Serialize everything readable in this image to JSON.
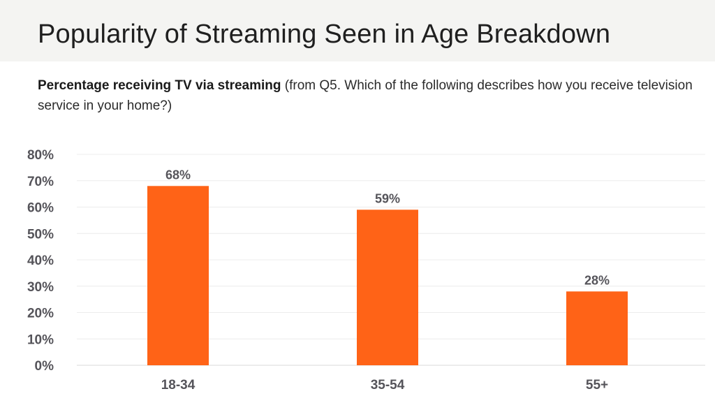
{
  "header": {
    "title": "Popularity of Streaming Seen in Age Breakdown"
  },
  "subtitle": {
    "bold": "Percentage receiving TV via streaming",
    "rest": " (from Q5. Which of the following describes how you receive television service in your home?)"
  },
  "chart_data": {
    "type": "bar",
    "title": "Percentage receiving TV via streaming",
    "categories": [
      "18-34",
      "35-54",
      "55+"
    ],
    "values": [
      68,
      59,
      28
    ],
    "data_labels": [
      "68%",
      "59%",
      "28%"
    ],
    "ylim": [
      0,
      80
    ],
    "yticks": [
      0,
      10,
      20,
      30,
      40,
      50,
      60,
      70,
      80
    ],
    "ytick_labels": [
      "0%",
      "10%",
      "20%",
      "30%",
      "40%",
      "50%",
      "60%",
      "70%",
      "80%"
    ],
    "xlabel": "",
    "ylabel": "",
    "grid": true,
    "legend": "none",
    "colors": {
      "bar": "#ff6317",
      "grid": "#ececec",
      "axis": "#d9d9d9",
      "text": "#55545a"
    }
  }
}
